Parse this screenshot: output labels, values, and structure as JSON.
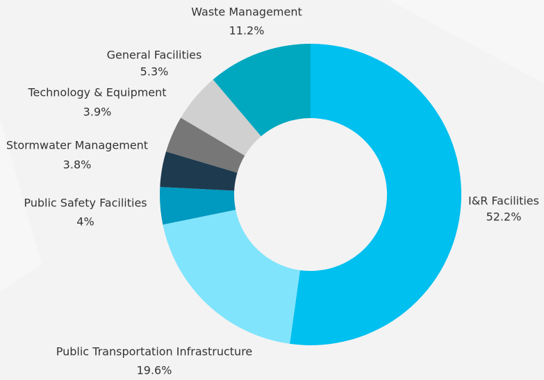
{
  "chart_data": {
    "type": "donut",
    "categories": [
      "I&R Facilities",
      "Public Transportation Infrastructure",
      "Public Safety Facilities",
      "Stormwater Management",
      "Technology & Equipment",
      "General Facilities",
      "Waste Management"
    ],
    "values": [
      52.2,
      19.6,
      4,
      3.8,
      3.9,
      5.3,
      11.2
    ],
    "value_labels": [
      "52.2%",
      "19.6%",
      "4%",
      "3.8%",
      "3.9%",
      "5.3%",
      "11.2%"
    ],
    "colors": [
      "#00c0ef",
      "#80e4fc",
      "#0099bf",
      "#1e3a4f",
      "#777777",
      "#d0d0d0",
      "#00a8bf"
    ]
  }
}
